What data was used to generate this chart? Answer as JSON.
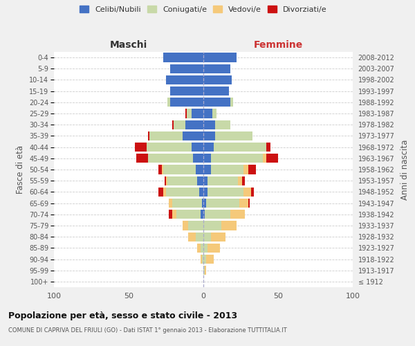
{
  "age_groups": [
    "100+",
    "95-99",
    "90-94",
    "85-89",
    "80-84",
    "75-79",
    "70-74",
    "65-69",
    "60-64",
    "55-59",
    "50-54",
    "45-49",
    "40-44",
    "35-39",
    "30-34",
    "25-29",
    "20-24",
    "15-19",
    "10-14",
    "5-9",
    "0-4"
  ],
  "birth_years": [
    "≤ 1912",
    "1913-1917",
    "1918-1922",
    "1923-1927",
    "1928-1932",
    "1933-1937",
    "1938-1942",
    "1943-1947",
    "1948-1952",
    "1953-1957",
    "1958-1962",
    "1963-1967",
    "1968-1972",
    "1973-1977",
    "1978-1982",
    "1983-1987",
    "1988-1992",
    "1993-1997",
    "1998-2002",
    "2003-2007",
    "2008-2012"
  ],
  "maschi": {
    "celibi": [
      0,
      0,
      0,
      0,
      0,
      0,
      2,
      1,
      3,
      4,
      5,
      7,
      8,
      14,
      12,
      8,
      22,
      22,
      25,
      22,
      27
    ],
    "coniugati": [
      0,
      0,
      1,
      2,
      5,
      10,
      16,
      20,
      22,
      20,
      22,
      30,
      30,
      22,
      8,
      3,
      2,
      0,
      0,
      0,
      0
    ],
    "vedovi": [
      0,
      0,
      1,
      2,
      5,
      4,
      3,
      2,
      2,
      1,
      1,
      0,
      0,
      0,
      0,
      0,
      0,
      0,
      0,
      0,
      0
    ],
    "divorziati": [
      0,
      0,
      0,
      0,
      0,
      0,
      2,
      0,
      3,
      1,
      2,
      8,
      8,
      1,
      1,
      1,
      0,
      0,
      0,
      0,
      0
    ]
  },
  "femmine": {
    "nubili": [
      0,
      0,
      0,
      0,
      0,
      0,
      1,
      2,
      3,
      3,
      5,
      5,
      7,
      8,
      8,
      6,
      18,
      17,
      19,
      18,
      22
    ],
    "coniugate": [
      0,
      1,
      2,
      3,
      5,
      12,
      17,
      22,
      24,
      20,
      22,
      35,
      35,
      25,
      10,
      3,
      2,
      0,
      0,
      0,
      0
    ],
    "vedove": [
      0,
      1,
      5,
      8,
      10,
      10,
      10,
      6,
      5,
      3,
      3,
      2,
      0,
      0,
      0,
      0,
      0,
      0,
      0,
      0,
      0
    ],
    "divorziate": [
      0,
      0,
      0,
      0,
      0,
      0,
      0,
      1,
      2,
      2,
      5,
      8,
      3,
      0,
      0,
      0,
      0,
      0,
      0,
      0,
      0
    ]
  },
  "colors": {
    "celibi_nubili": "#4472C4",
    "coniugati_e": "#C8D9A8",
    "vedovi_e": "#F5C97A",
    "divorziati_e": "#CC1111"
  },
  "xlim": 100,
  "title": "Popolazione per età, sesso e stato civile - 2013",
  "subtitle": "COMUNE DI CAPRIVA DEL FRIULI (GO) - Dati ISTAT 1° gennaio 2013 - Elaborazione TUTTITALIA.IT",
  "ylabel_left": "Fasce di età",
  "ylabel_right": "Anni di nascita",
  "xlabel_left": "Maschi",
  "xlabel_right": "Femmine",
  "bg_color": "#f0f0f0",
  "plot_bg_color": "#ffffff"
}
